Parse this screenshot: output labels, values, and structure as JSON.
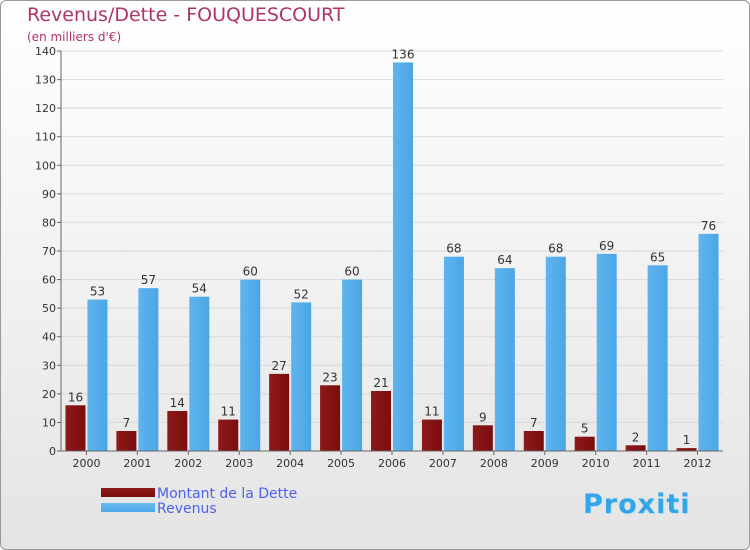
{
  "logo": {
    "text": "Proxiti"
  },
  "colors": {
    "dette": "#7a0d0d",
    "revenus": "#4aa6e6",
    "title": "#b0336a",
    "legend_text": "#4d62e8"
  },
  "chart_data": {
    "type": "bar",
    "title": "Revenus/Dette - FOUQUESCOURT",
    "subtitle": "(en milliers d'€)",
    "xlabel": "",
    "ylabel": "",
    "ylim": [
      0,
      140
    ],
    "yticks": [
      0,
      10,
      20,
      30,
      40,
      50,
      60,
      70,
      80,
      90,
      100,
      110,
      120,
      130,
      140
    ],
    "categories": [
      "2000",
      "2001",
      "2002",
      "2003",
      "2004",
      "2005",
      "2006",
      "2007",
      "2008",
      "2009",
      "2010",
      "2011",
      "2012"
    ],
    "series": [
      {
        "name": "Montant de la Dette",
        "values": [
          16,
          7,
          14,
          11,
          27,
          23,
          21,
          11,
          9,
          7,
          5,
          2,
          1
        ]
      },
      {
        "name": "Revenus",
        "values": [
          53,
          57,
          54,
          60,
          52,
          60,
          136,
          68,
          64,
          68,
          69,
          65,
          76
        ]
      }
    ],
    "legend": "bottom-left",
    "grid": true
  }
}
